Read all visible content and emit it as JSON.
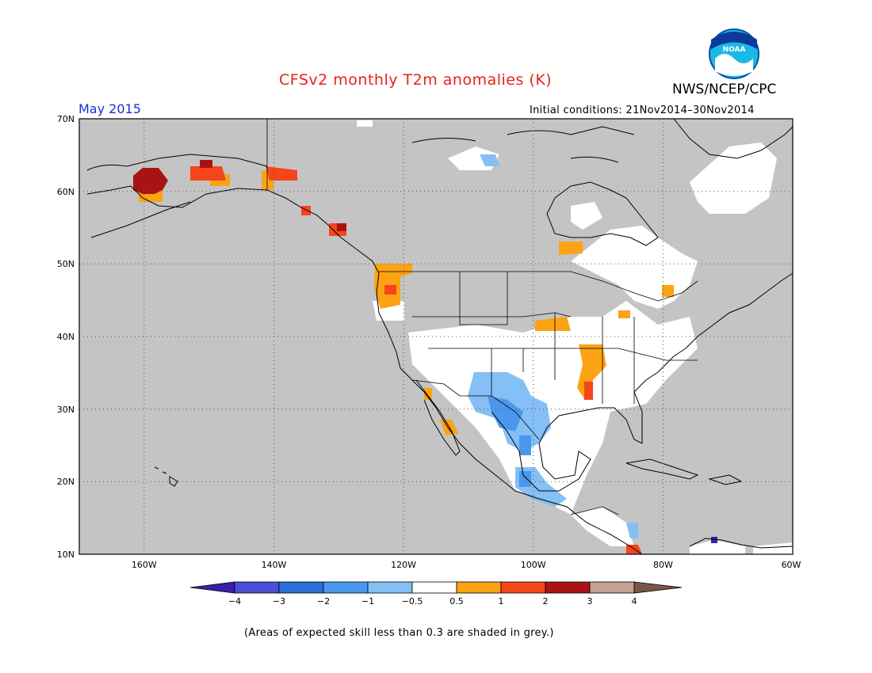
{
  "header": {
    "title": "CFSv2 monthly T2m anomalies (K)",
    "agency": "NWS/NCEP/CPC",
    "logo_text": "NOAA",
    "month": "May 2015",
    "initial_conditions": "Initial conditions: 21Nov2014–30Nov2014"
  },
  "map": {
    "lat_labels": [
      "70N",
      "60N",
      "50N",
      "40N",
      "30N",
      "20N",
      "10N"
    ],
    "lon_labels": [
      "160W",
      "140W",
      "120W",
      "100W",
      "80W",
      "60W"
    ],
    "lat_range": [
      10,
      70
    ],
    "lon_range": [
      -170,
      -60
    ],
    "background_color": "#c4c4c4",
    "grid": "dotted"
  },
  "colorbar": {
    "tick_labels": [
      "−4",
      "−3",
      "−2",
      "−1",
      "−0.5",
      "0.5",
      "1",
      "2",
      "3",
      "4"
    ],
    "colors": [
      "#3a1fa8",
      "#4a4fd8",
      "#2a6fd6",
      "#4a98ee",
      "#84bff5",
      "#ffffff",
      "#fba314",
      "#f5451b",
      "#aa1313",
      "#c4a08f",
      "#7a5646"
    ]
  },
  "footnote": "(Areas of expected skill less than 0.3 are shaded in grey.)"
}
